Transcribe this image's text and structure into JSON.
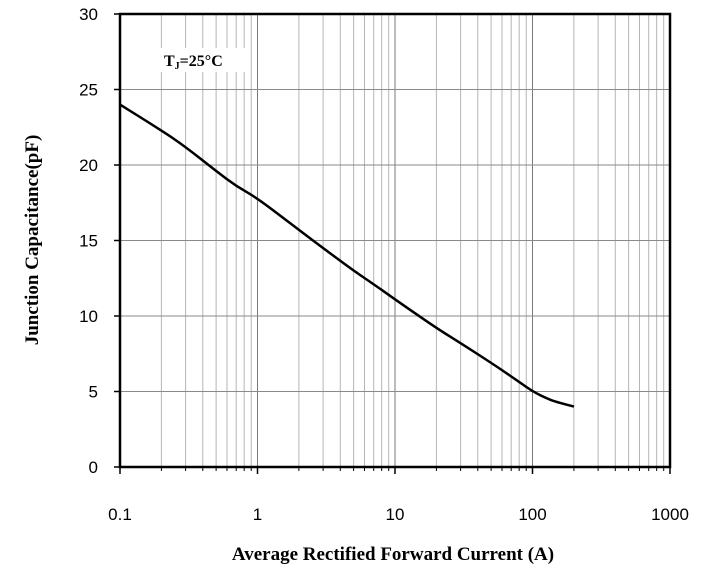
{
  "chart_data": {
    "type": "line",
    "xlabel": "Average Rectified Forward Current (A)",
    "ylabel": "Junction Capacitance(pF)",
    "xscale": "log",
    "xlim": [
      0.1,
      1000
    ],
    "ylim": [
      0,
      30
    ],
    "x_ticks": [
      "0.1",
      "1",
      "10",
      "100",
      "1000"
    ],
    "y_ticks": [
      "0",
      "5",
      "10",
      "15",
      "20",
      "25",
      "30"
    ],
    "grid": true,
    "annotation": {
      "main": "T",
      "sub": "J",
      "rest": "=25°C"
    },
    "series": [
      {
        "x": [
          0.1,
          0.2,
          0.3,
          0.5,
          0.7,
          1,
          2,
          3,
          5,
          7,
          10,
          20,
          30,
          50,
          70,
          100,
          130,
          150,
          200
        ],
        "y": [
          24,
          22.3,
          21.2,
          19.6,
          18.6,
          17.8,
          15.7,
          14.5,
          13.0,
          12.1,
          11.1,
          9.2,
          8.2,
          6.9,
          6.0,
          5.0,
          4.5,
          4.3,
          4.0
        ]
      }
    ]
  }
}
